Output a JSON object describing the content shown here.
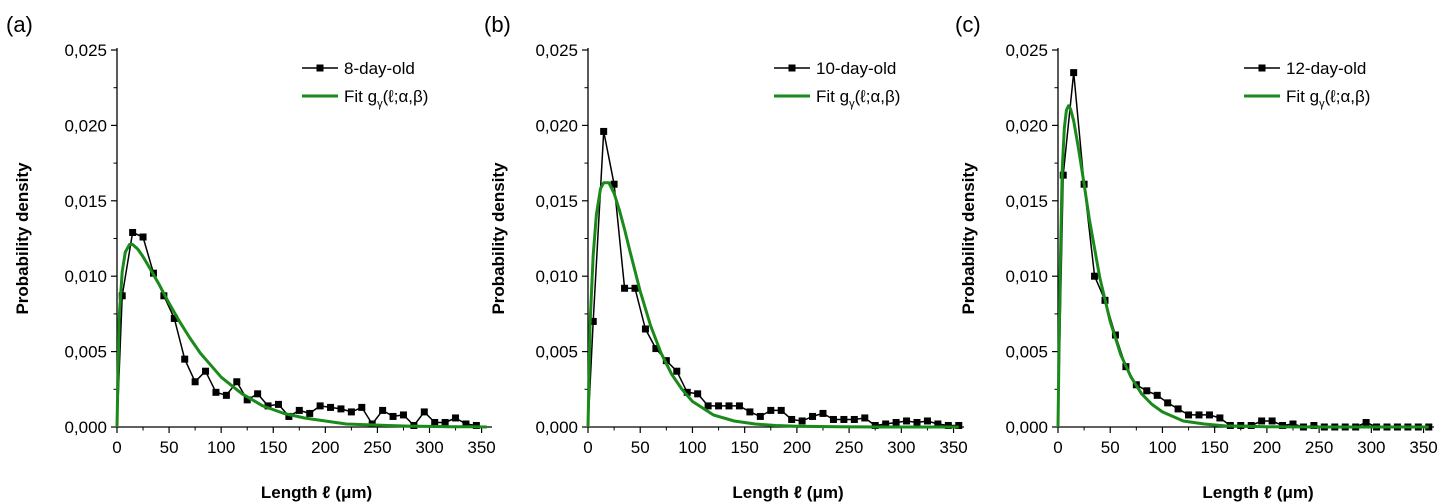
{
  "figure": {
    "xlabel": "Length ℓ (μm)",
    "ylabel": "Probability density"
  },
  "colors": {
    "data": "#000000",
    "fit": "#1a8a1a"
  },
  "chart_data": [
    {
      "panel": "(a)",
      "type": "line",
      "xlabel": "Length ℓ (μm)",
      "ylabel": "Probability density",
      "xlim": [
        0,
        360
      ],
      "ylim": [
        0,
        0.025
      ],
      "xticks": [
        "0",
        "50",
        "100",
        "150",
        "200",
        "250",
        "300",
        "350"
      ],
      "yticks": [
        "0,000",
        "0,005",
        "0,010",
        "0,015",
        "0,020",
        "0,025"
      ],
      "legend": {
        "position": "top-right"
      },
      "series": [
        {
          "name": "8-day-old",
          "marker": "square",
          "x": [
            0,
            5,
            15,
            25,
            35,
            45,
            55,
            65,
            75,
            85,
            95,
            105,
            115,
            125,
            135,
            145,
            155,
            165,
            175,
            185,
            195,
            205,
            215,
            225,
            235,
            245,
            255,
            265,
            275,
            285,
            295,
            305,
            315,
            325,
            335,
            345
          ],
          "y": [
            0,
            0.0087,
            0.0129,
            0.0126,
            0.0102,
            0.0087,
            0.0072,
            0.0045,
            0.003,
            0.0037,
            0.0023,
            0.0021,
            0.003,
            0.0018,
            0.0022,
            0.0014,
            0.0015,
            0.0007,
            0.0011,
            0.0009,
            0.0014,
            0.0013,
            0.0012,
            0.001,
            0.0013,
            0.0002,
            0.0011,
            0.0007,
            0.0008,
            0.0001,
            0.001,
            0.0003,
            0.0003,
            0.0006,
            0.0002,
            0.0001
          ]
        },
        {
          "name": "Fit g_γ(ℓ;α,β)",
          "marker": "none",
          "x": [
            0,
            2,
            5,
            8,
            12,
            15,
            20,
            25,
            30,
            40,
            50,
            60,
            70,
            80,
            90,
            100,
            120,
            140,
            160,
            180,
            200,
            220,
            240,
            260,
            280,
            300,
            320,
            340,
            355
          ],
          "y": [
            0,
            0.0072,
            0.0103,
            0.0116,
            0.0121,
            0.0121,
            0.0118,
            0.0113,
            0.0107,
            0.0095,
            0.0082,
            0.007,
            0.0059,
            0.0049,
            0.0041,
            0.0033,
            0.0022,
            0.0014,
            0.0009,
            0.0006,
            0.0004,
            0.0002,
            0.00015,
            0.0001,
            6e-05,
            4e-05,
            2e-05,
            1e-05,
            0
          ]
        }
      ]
    },
    {
      "panel": "(b)",
      "type": "line",
      "xlabel": "Length ℓ (μm)",
      "ylabel": "Probability density",
      "xlim": [
        0,
        360
      ],
      "ylim": [
        0,
        0.025
      ],
      "xticks": [
        "0",
        "50",
        "100",
        "150",
        "200",
        "250",
        "300",
        "350"
      ],
      "yticks": [
        "0,000",
        "0,005",
        "0,010",
        "0,015",
        "0,020",
        "0,025"
      ],
      "legend": {
        "position": "top-right"
      },
      "series": [
        {
          "name": "10-day-old",
          "marker": "square",
          "x": [
            0,
            5,
            15,
            25,
            35,
            45,
            55,
            65,
            75,
            85,
            95,
            105,
            115,
            125,
            135,
            145,
            155,
            165,
            175,
            185,
            195,
            205,
            215,
            225,
            235,
            245,
            255,
            265,
            275,
            285,
            295,
            305,
            315,
            325,
            335,
            345,
            355
          ],
          "y": [
            0,
            0.007,
            0.0196,
            0.0161,
            0.0092,
            0.0092,
            0.0065,
            0.0052,
            0.0044,
            0.0037,
            0.0023,
            0.0022,
            0.0014,
            0.0014,
            0.0014,
            0.0014,
            0.001,
            0.0007,
            0.0011,
            0.0011,
            0.0005,
            0.0004,
            0.0007,
            0.0009,
            0.0005,
            0.0005,
            0.0005,
            0.0006,
            0.0001,
            0.0002,
            0.0003,
            0.0004,
            0.0003,
            0.0004,
            0.0002,
            0.0001,
            0.0001
          ]
        },
        {
          "name": "Fit g_γ(ℓ;α,β)",
          "marker": "none",
          "x": [
            0,
            2,
            5,
            8,
            12,
            15,
            20,
            25,
            30,
            35,
            40,
            50,
            60,
            70,
            80,
            90,
            100,
            120,
            140,
            160,
            180,
            200,
            240,
            280,
            320,
            355
          ],
          "y": [
            0,
            0.0069,
            0.0114,
            0.0141,
            0.0158,
            0.0162,
            0.0162,
            0.0155,
            0.0144,
            0.0131,
            0.0117,
            0.009,
            0.0067,
            0.0049,
            0.0035,
            0.0025,
            0.0017,
            0.0008,
            0.0004,
            0.0002,
            0.0001,
            5e-05,
            1e-05,
            0,
            0,
            0
          ]
        }
      ]
    },
    {
      "panel": "(c)",
      "type": "line",
      "xlabel": "Length ℓ (μm)",
      "ylabel": "Probability density",
      "xlim": [
        0,
        360
      ],
      "ylim": [
        0,
        0.025
      ],
      "xticks": [
        "0",
        "50",
        "100",
        "150",
        "200",
        "250",
        "300",
        "350"
      ],
      "yticks": [
        "0,000",
        "0,005",
        "0,010",
        "0,015",
        "0,020",
        "0,025"
      ],
      "legend": {
        "position": "top-right"
      },
      "series": [
        {
          "name": "12-day-old",
          "marker": "square",
          "x": [
            0,
            5,
            15,
            25,
            35,
            45,
            55,
            65,
            75,
            85,
            95,
            105,
            115,
            125,
            135,
            145,
            155,
            165,
            175,
            185,
            195,
            205,
            215,
            225,
            235,
            245,
            255,
            265,
            275,
            285,
            295,
            305,
            315,
            325,
            335,
            345,
            355
          ],
          "y": [
            0,
            0.0167,
            0.0235,
            0.0161,
            0.01,
            0.0084,
            0.0061,
            0.004,
            0.0028,
            0.0024,
            0.0021,
            0.0016,
            0.0012,
            0.0008,
            0.0008,
            0.0008,
            0.0006,
            0.0001,
            0.0001,
            0.0001,
            0.0004,
            0.0004,
            0.0001,
            0.0002,
            0.0,
            0.0001,
            0.0,
            0.0,
            0.0,
            0.0,
            0.0003,
            0.0,
            0.0,
            0.0,
            0.0,
            0.0,
            0.0
          ]
        },
        {
          "name": "Fit g_γ(ℓ;α,β)",
          "marker": "none",
          "x": [
            0,
            1,
            2,
            4,
            6,
            8,
            10,
            12,
            15,
            20,
            25,
            30,
            40,
            50,
            60,
            70,
            80,
            90,
            100,
            120,
            140,
            160,
            200,
            250,
            300,
            355
          ],
          "y": [
            0,
            0.005,
            0.01,
            0.017,
            0.0198,
            0.021,
            0.0213,
            0.0211,
            0.0203,
            0.0183,
            0.0161,
            0.0138,
            0.0099,
            0.007,
            0.0048,
            0.0033,
            0.0022,
            0.0015,
            0.001,
            0.0004,
            0.0002,
            7e-05,
            1e-05,
            0,
            0,
            0
          ]
        }
      ]
    }
  ]
}
